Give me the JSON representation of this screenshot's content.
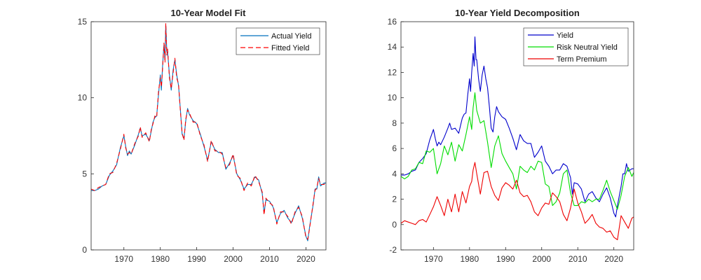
{
  "chart_data": [
    {
      "type": "line",
      "title": "10-Year Model Fit",
      "xlabel": "",
      "ylabel": "",
      "xlim": [
        1961,
        2025.5
      ],
      "ylim": [
        0,
        15
      ],
      "xticks": [
        "1970",
        "1980",
        "1990",
        "2000",
        "2010",
        "2020"
      ],
      "yticks": [
        "0",
        "5",
        "10",
        "15"
      ],
      "legend_position": "top-right",
      "grid": false,
      "series": [
        {
          "name": "Actual Yield",
          "color": "#0072BD",
          "style": "solid",
          "x": [
            1961,
            1962,
            1963,
            1964,
            1965,
            1966,
            1967,
            1968,
            1969,
            1970,
            1970.5,
            1971,
            1971.5,
            1972,
            1973,
            1974,
            1974.5,
            1975,
            1976,
            1977,
            1977.5,
            1978,
            1978.5,
            1979,
            1979.5,
            1980,
            1980.3,
            1980.6,
            1981,
            1981.3,
            1981.5,
            1981.8,
            1982,
            1982.5,
            1983,
            1983.5,
            1984,
            1984.5,
            1985,
            1985.5,
            1986,
            1986.5,
            1987,
            1987.5,
            1988,
            1989,
            1990,
            1991,
            1992,
            1993,
            1994,
            1995,
            1996,
            1997,
            1998,
            1999,
            2000,
            2001,
            2002,
            2003,
            2004,
            2005,
            2006,
            2007,
            2008,
            2008.5,
            2009,
            2010,
            2011,
            2012,
            2013,
            2014,
            2015,
            2016,
            2017,
            2018,
            2019,
            2020,
            2020.5,
            2021,
            2022,
            2022.5,
            2023,
            2023.5,
            2024,
            2025,
            2025.5
          ],
          "values": [
            3.9,
            3.9,
            4.0,
            4.2,
            4.3,
            4.9,
            5.2,
            5.6,
            6.7,
            7.5,
            6.8,
            6.2,
            6.5,
            6.3,
            6.9,
            7.6,
            8.0,
            7.5,
            7.6,
            7.2,
            7.8,
            8.4,
            8.7,
            8.8,
            10.2,
            11.5,
            10.5,
            12.0,
            13.5,
            12.5,
            14.8,
            13.0,
            13.0,
            11.5,
            10.5,
            11.8,
            12.5,
            11.5,
            10.8,
            9.3,
            7.6,
            7.3,
            8.5,
            9.3,
            8.9,
            8.5,
            8.3,
            7.6,
            6.8,
            5.9,
            7.1,
            6.6,
            6.4,
            6.4,
            5.3,
            5.7,
            6.2,
            5.0,
            4.6,
            4.0,
            4.3,
            4.3,
            4.8,
            4.6,
            3.7,
            2.4,
            3.3,
            3.2,
            2.8,
            1.8,
            2.4,
            2.6,
            2.1,
            1.8,
            2.4,
            2.9,
            2.1,
            0.9,
            0.6,
            1.5,
            3.0,
            4.0,
            4.0,
            4.8,
            4.2,
            4.4,
            4.4
          ]
        },
        {
          "name": "Fitted Yield",
          "color": "#FF0000",
          "style": "dashed",
          "x": [
            1961,
            1962,
            1963,
            1964,
            1965,
            1966,
            1967,
            1968,
            1969,
            1970,
            1970.5,
            1971,
            1971.5,
            1972,
            1973,
            1974,
            1974.5,
            1975,
            1976,
            1977,
            1977.5,
            1978,
            1978.5,
            1979,
            1979.5,
            1980,
            1980.3,
            1980.6,
            1981,
            1981.3,
            1981.5,
            1981.8,
            1982,
            1982.5,
            1983,
            1983.5,
            1984,
            1984.5,
            1985,
            1985.5,
            1986,
            1986.5,
            1987,
            1987.5,
            1988,
            1989,
            1990,
            1991,
            1992,
            1993,
            1994,
            1995,
            1996,
            1997,
            1998,
            1999,
            2000,
            2001,
            2002,
            2003,
            2004,
            2005,
            2006,
            2007,
            2008,
            2008.5,
            2009,
            2010,
            2011,
            2012,
            2013,
            2014,
            2015,
            2016,
            2017,
            2018,
            2019,
            2020,
            2020.5,
            2021,
            2022,
            2022.5,
            2023,
            2023.5,
            2024,
            2025,
            2025.5
          ],
          "values": [
            4.0,
            3.9,
            4.1,
            4.2,
            4.3,
            5.0,
            5.1,
            5.7,
            6.6,
            7.6,
            6.7,
            6.3,
            6.4,
            6.3,
            7.0,
            7.5,
            8.1,
            7.4,
            7.7,
            7.1,
            7.9,
            8.3,
            8.8,
            8.7,
            10.4,
            11.3,
            10.7,
            11.8,
            13.6,
            12.3,
            14.9,
            12.8,
            13.2,
            11.3,
            10.6,
            11.6,
            12.6,
            11.3,
            10.9,
            9.2,
            7.7,
            7.2,
            8.6,
            9.2,
            9.0,
            8.4,
            8.4,
            7.5,
            6.9,
            5.8,
            7.2,
            6.5,
            6.5,
            6.3,
            5.4,
            5.6,
            6.3,
            4.9,
            4.7,
            3.9,
            4.4,
            4.2,
            4.9,
            4.5,
            3.8,
            2.3,
            3.4,
            3.1,
            2.9,
            1.7,
            2.5,
            2.5,
            2.2,
            1.7,
            2.5,
            2.8,
            2.2,
            0.8,
            0.7,
            1.4,
            3.1,
            3.9,
            4.1,
            4.7,
            4.3,
            4.3,
            4.5
          ]
        }
      ]
    },
    {
      "type": "line",
      "title": "10-Year Yield Decomposition",
      "xlabel": "",
      "ylabel": "",
      "xlim": [
        1961,
        2025.5
      ],
      "ylim": [
        -2,
        16
      ],
      "xticks": [
        "1970",
        "1980",
        "1990",
        "2000",
        "2010",
        "2020"
      ],
      "yticks": [
        "-2",
        "0",
        "2",
        "4",
        "6",
        "8",
        "10",
        "12",
        "14",
        "16"
      ],
      "legend_position": "top-right",
      "grid": false,
      "series": [
        {
          "name": "Yield",
          "color": "#0000CC",
          "style": "solid",
          "x": [
            1961,
            1962,
            1963,
            1964,
            1965,
            1966,
            1967,
            1968,
            1969,
            1970,
            1970.5,
            1971,
            1971.5,
            1972,
            1973,
            1974,
            1974.5,
            1975,
            1976,
            1977,
            1977.5,
            1978,
            1978.5,
            1979,
            1979.5,
            1980,
            1980.3,
            1980.6,
            1981,
            1981.3,
            1981.5,
            1981.8,
            1982,
            1982.5,
            1983,
            1983.5,
            1984,
            1984.5,
            1985,
            1985.5,
            1986,
            1986.5,
            1987,
            1987.5,
            1988,
            1989,
            1990,
            1991,
            1992,
            1993,
            1994,
            1995,
            1996,
            1997,
            1998,
            1999,
            2000,
            2001,
            2002,
            2003,
            2004,
            2005,
            2006,
            2007,
            2008,
            2008.5,
            2009,
            2010,
            2011,
            2012,
            2013,
            2014,
            2015,
            2016,
            2017,
            2018,
            2019,
            2020,
            2020.5,
            2021,
            2022,
            2022.5,
            2023,
            2023.5,
            2024,
            2025,
            2025.5
          ],
          "values": [
            3.9,
            3.9,
            4.0,
            4.2,
            4.3,
            4.9,
            5.2,
            5.6,
            6.7,
            7.5,
            6.8,
            6.2,
            6.5,
            6.3,
            6.9,
            7.6,
            8.0,
            7.5,
            7.6,
            7.2,
            7.8,
            8.4,
            8.7,
            8.8,
            10.2,
            11.5,
            10.5,
            12.0,
            13.5,
            12.5,
            14.8,
            13.0,
            13.0,
            11.5,
            10.5,
            11.8,
            12.5,
            11.5,
            10.8,
            9.3,
            7.6,
            7.3,
            8.5,
            9.3,
            8.9,
            8.5,
            8.3,
            7.6,
            6.8,
            5.9,
            7.1,
            6.6,
            6.4,
            6.4,
            5.3,
            5.7,
            6.2,
            5.0,
            4.6,
            4.0,
            4.3,
            4.3,
            4.8,
            4.6,
            3.7,
            2.4,
            3.3,
            3.2,
            2.8,
            1.8,
            2.4,
            2.6,
            2.1,
            1.8,
            2.4,
            2.9,
            2.1,
            0.9,
            0.6,
            1.5,
            3.0,
            4.0,
            4.0,
            4.8,
            4.2,
            4.4,
            4.4
          ]
        },
        {
          "name": "Risk Neutral Yield",
          "color": "#00DD00",
          "style": "solid",
          "x": [
            1961,
            1962,
            1963,
            1964,
            1965,
            1966,
            1967,
            1968,
            1969,
            1970,
            1971,
            1972,
            1973,
            1974,
            1975,
            1976,
            1977,
            1978,
            1979,
            1980,
            1980.6,
            1981,
            1981.5,
            1982,
            1983,
            1984,
            1985,
            1986,
            1987,
            1988,
            1989,
            1990,
            1991,
            1992,
            1993,
            1994,
            1995,
            1996,
            1997,
            1998,
            1999,
            2000,
            2001,
            2002,
            2003,
            2004,
            2005,
            2006,
            2007,
            2008,
            2009,
            2010,
            2011,
            2012,
            2013,
            2014,
            2015,
            2016,
            2017,
            2018,
            2019,
            2020,
            2021,
            2022,
            2023,
            2024,
            2025,
            2025.5
          ],
          "values": [
            3.8,
            3.6,
            3.8,
            4.3,
            4.4,
            4.9,
            4.8,
            5.8,
            5.7,
            6.0,
            4.0,
            4.8,
            6.2,
            5.5,
            6.5,
            5.0,
            6.3,
            5.8,
            7.1,
            8.5,
            7.5,
            9.2,
            10.4,
            9.0,
            8.0,
            8.2,
            6.5,
            4.5,
            6.2,
            7.0,
            5.6,
            5.0,
            4.5,
            4.0,
            2.8,
            4.6,
            4.3,
            4.1,
            4.6,
            4.3,
            5.0,
            4.9,
            3.2,
            3.0,
            1.5,
            1.8,
            2.5,
            4.0,
            4.3,
            2.5,
            1.5,
            1.5,
            1.8,
            1.7,
            2.0,
            1.8,
            2.0,
            2.0,
            2.7,
            3.5,
            2.6,
            1.9,
            1.2,
            2.3,
            3.8,
            4.5,
            3.8,
            4.1
          ]
        },
        {
          "name": "Term Premium",
          "color": "#EE0000",
          "style": "solid",
          "x": [
            1961,
            1962,
            1963,
            1964,
            1965,
            1966,
            1967,
            1968,
            1969,
            1970,
            1971,
            1972,
            1973,
            1974,
            1975,
            1976,
            1977,
            1978,
            1979,
            1980,
            1980.6,
            1981,
            1981.5,
            1982,
            1983,
            1984,
            1985,
            1986,
            1987,
            1988,
            1989,
            1990,
            1991,
            1992,
            1993,
            1994,
            1995,
            1996,
            1997,
            1998,
            1999,
            2000,
            2001,
            2002,
            2003,
            2004,
            2005,
            2006,
            2007,
            2008,
            2009,
            2010,
            2011,
            2012,
            2013,
            2014,
            2015,
            2016,
            2017,
            2018,
            2019,
            2020,
            2021,
            2022,
            2023,
            2024,
            2025,
            2025.5
          ],
          "values": [
            0.1,
            0.3,
            0.2,
            0.1,
            0.0,
            0.3,
            0.4,
            0.2,
            0.8,
            1.4,
            2.2,
            1.5,
            0.7,
            2.0,
            1.0,
            2.4,
            1.0,
            2.6,
            1.7,
            3.0,
            3.4,
            4.3,
            4.9,
            4.0,
            2.4,
            4.1,
            4.2,
            3.0,
            2.3,
            1.9,
            2.9,
            3.3,
            3.1,
            2.8,
            3.5,
            2.5,
            2.2,
            2.3,
            1.8,
            1.0,
            0.7,
            1.3,
            1.7,
            1.6,
            2.5,
            2.2,
            1.8,
            0.8,
            0.3,
            1.3,
            2.8,
            1.7,
            1.0,
            0.1,
            0.4,
            0.8,
            0.1,
            -0.2,
            -0.3,
            -0.6,
            -0.5,
            -1.0,
            -1.2,
            0.7,
            0.2,
            -0.3,
            0.5,
            0.6
          ]
        }
      ]
    }
  ]
}
